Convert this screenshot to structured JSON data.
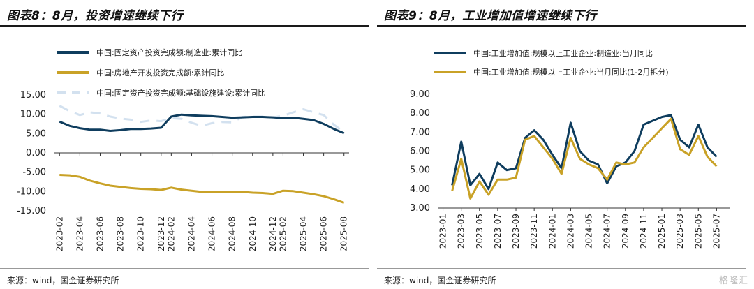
{
  "panels": [
    {
      "title": "图表8：8月，投资增速继续下行",
      "source": "来源：wind，国金证券研究所"
    },
    {
      "title": "图表9：8月，工业增加值增速继续下行",
      "source": "来源：wind，国金证券研究所"
    }
  ],
  "watermark": "格隆汇",
  "chart_data": [
    {
      "type": "line",
      "title": "",
      "ylim": [
        -15,
        15
      ],
      "yticks": [
        "15.00",
        "10.00",
        "5.00",
        "0.00",
        "-5.00",
        "-10.00",
        "-15.00"
      ],
      "ytick_values": [
        15,
        10,
        5,
        0,
        -5,
        -10,
        -15
      ],
      "xtick_labels": [
        "2023-02",
        "2023-04",
        "2023-06",
        "2023-08",
        "2023-10",
        "2023-12",
        "2024-02",
        "2024-04",
        "2024-06",
        "2024-08",
        "2024-10",
        "2024-12",
        "2025-02",
        "2025-04",
        "2025-06",
        "2025-08"
      ],
      "x": [
        "2023-02",
        "2023-03",
        "2023-04",
        "2023-05",
        "2023-06",
        "2023-07",
        "2023-08",
        "2023-09",
        "2023-10",
        "2023-11",
        "2023-12",
        "2024-02",
        "2024-03",
        "2024-04",
        "2024-05",
        "2024-06",
        "2024-07",
        "2024-08",
        "2024-09",
        "2024-10",
        "2024-11",
        "2024-12",
        "2025-02",
        "2025-03",
        "2025-04",
        "2025-05",
        "2025-06",
        "2025-07",
        "2025-08"
      ],
      "legend_position": "top-left",
      "grid": false,
      "series": [
        {
          "name": "中国:固定资产投资完成额:制造业:累计同比",
          "color": "#0f3d5e",
          "dash": "solid",
          "values": [
            8.1,
            7.0,
            6.4,
            6.0,
            6.0,
            5.7,
            5.9,
            6.2,
            6.2,
            6.3,
            6.5,
            9.4,
            9.9,
            9.7,
            9.6,
            9.5,
            9.3,
            9.1,
            9.2,
            9.3,
            9.3,
            9.2,
            9.0,
            9.1,
            8.8,
            8.5,
            7.5,
            6.2,
            5.1
          ]
        },
        {
          "name": "中国:房地产开发投资完成额:累计同比",
          "color": "#c9a227",
          "dash": "solid",
          "values": [
            -5.7,
            -5.8,
            -6.2,
            -7.2,
            -7.9,
            -8.5,
            -8.8,
            -9.1,
            -9.3,
            -9.4,
            -9.6,
            -9.0,
            -9.5,
            -9.8,
            -10.1,
            -10.1,
            -10.2,
            -10.2,
            -10.1,
            -10.3,
            -10.4,
            -10.6,
            -9.8,
            -9.9,
            -10.3,
            -10.7,
            -11.2,
            -12.0,
            -12.9
          ]
        },
        {
          "name": "中国:固定资产投资完成额:基础设施建设:累计同比",
          "color": "#d3e1ef",
          "dash": "dashed",
          "values": [
            12.2,
            10.8,
            9.8,
            10.5,
            10.2,
            9.4,
            8.9,
            8.6,
            8.0,
            8.4,
            8.2,
            9.0,
            8.8,
            7.8,
            7.0,
            7.7,
            8.0,
            7.9,
            9.3,
            9.4,
            9.4,
            9.2,
            9.6,
            10.5,
            11.3,
            10.5,
            9.8,
            7.3,
            5.4
          ]
        }
      ]
    },
    {
      "type": "line",
      "title": "",
      "ylim": [
        3,
        9
      ],
      "yticks": [
        "9.00",
        "8.00",
        "7.00",
        "6.00",
        "5.00",
        "4.00",
        "3.00"
      ],
      "ytick_values": [
        9,
        8,
        7,
        6,
        5,
        4,
        3
      ],
      "xtick_labels": [
        "2023-01",
        "2023-03",
        "2023-05",
        "2023-07",
        "2023-09",
        "2023-11",
        "2024-01",
        "2024-03",
        "2024-05",
        "2024-07",
        "2024-09",
        "2024-11",
        "2025-01",
        "2025-03",
        "2025-05",
        "2025-07"
      ],
      "x": [
        "2023-01",
        "2023-02",
        "2023-03",
        "2023-04",
        "2023-05",
        "2023-06",
        "2023-07",
        "2023-08",
        "2023-09",
        "2023-10",
        "2023-11",
        "2023-12",
        "2024-01",
        "2024-02",
        "2024-03",
        "2024-04",
        "2024-05",
        "2024-06",
        "2024-07",
        "2024-08",
        "2024-09",
        "2024-10",
        "2024-11",
        "2024-12",
        "2025-01",
        "2025-02",
        "2025-03",
        "2025-04",
        "2025-05",
        "2025-06",
        "2025-07",
        "2025-08"
      ],
      "legend_position": "top-left",
      "grid": false,
      "series": [
        {
          "name": "中国:工业增加值:规模以上工业企业:制造业:当月同比",
          "color": "#0f3d5e",
          "values": [
            null,
            4.2,
            6.5,
            4.2,
            4.8,
            4.0,
            5.4,
            5.0,
            5.1,
            6.7,
            7.1,
            6.6,
            5.8,
            5.1,
            7.5,
            6.0,
            5.5,
            5.3,
            4.3,
            5.2,
            5.4,
            6.0,
            7.4,
            7.6,
            7.8,
            7.9,
            6.6,
            6.2,
            7.4,
            6.2,
            5.7,
            null
          ]
        },
        {
          "name": "中国:工业增加值:规模以上工业企业:当月同比(1-2月拆分)",
          "color": "#c9a227",
          "values": [
            null,
            3.9,
            5.6,
            3.5,
            4.4,
            3.7,
            4.5,
            4.5,
            4.6,
            6.6,
            6.8,
            6.2,
            5.6,
            4.8,
            6.7,
            5.6,
            5.3,
            5.1,
            4.5,
            5.4,
            5.3,
            5.4,
            6.2,
            6.7,
            7.2,
            7.7,
            6.1,
            5.8,
            6.8,
            5.7,
            5.2,
            null
          ]
        }
      ]
    }
  ]
}
